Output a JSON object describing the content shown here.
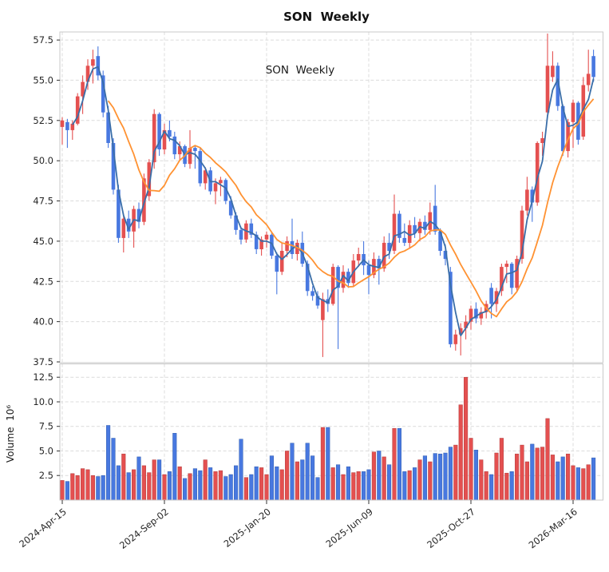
{
  "chart_data": {
    "type": "candlestick",
    "title": "SON  Weekly",
    "inset_label": "SON  Weekly",
    "interval": "weekly",
    "x_tick_labels": [
      "2024-Apr-15",
      "2024-Sep-02",
      "2025-Jan-20",
      "2025-Jun-09",
      "2025-Oct-27",
      "2026-Mar-16"
    ],
    "x_tick_indices": [
      0,
      20,
      40,
      60,
      80,
      100
    ],
    "price_axis": {
      "ticks": [
        "57.5",
        "55.0",
        "52.5",
        "50.0",
        "47.5",
        "45.0",
        "42.5",
        "40.0",
        "37.5"
      ],
      "range": [
        37.45,
        58.0
      ],
      "grid": true
    },
    "volume_axis": {
      "label": "Volume  10⁶",
      "ticks": [
        "12.5",
        "10.0",
        "7.5",
        "5.0",
        "2.5"
      ],
      "range": [
        0,
        13.86
      ],
      "unit_millions": true,
      "grid": true
    },
    "overlays": [
      {
        "name": "ma-short",
        "period": 3,
        "color": "#3a6ea8"
      },
      {
        "name": "ma-long",
        "period": 10,
        "color": "#ff9232"
      }
    ],
    "colors": {
      "up": "#e45050",
      "down": "#4878e0",
      "grid": "#dcdcdc",
      "spine": "#c9c9c9",
      "text": "#262626"
    },
    "columns": [
      "open",
      "high",
      "low",
      "close",
      "volume_millions"
    ],
    "candles": [
      [
        52.1,
        52.7,
        51.0,
        52.5,
        2.0
      ],
      [
        52.4,
        52.6,
        50.8,
        51.9,
        1.9
      ],
      [
        51.9,
        52.5,
        51.3,
        52.3,
        2.7
      ],
      [
        52.3,
        54.2,
        52.2,
        54.0,
        2.5
      ],
      [
        54.0,
        55.3,
        52.9,
        54.9,
        3.2
      ],
      [
        54.9,
        56.3,
        54.4,
        55.9,
        3.1
      ],
      [
        55.9,
        56.9,
        54.8,
        56.3,
        2.5
      ],
      [
        56.5,
        57.1,
        55.0,
        55.3,
        2.4
      ],
      [
        55.3,
        55.6,
        52.7,
        53.0,
        2.5
      ],
      [
        53.0,
        53.4,
        50.8,
        51.1,
        7.6
      ],
      [
        51.1,
        51.4,
        47.9,
        48.2,
        6.3
      ],
      [
        48.2,
        48.5,
        44.9,
        45.2,
        3.5
      ],
      [
        45.2,
        46.7,
        44.3,
        46.4,
        4.7
      ],
      [
        46.4,
        46.9,
        45.2,
        45.6,
        2.8
      ],
      [
        45.6,
        47.2,
        44.6,
        47.0,
        3.1
      ],
      [
        47.0,
        47.4,
        45.8,
        46.2,
        4.4
      ],
      [
        46.2,
        49.2,
        46.0,
        48.9,
        3.5
      ],
      [
        47.8,
        50.1,
        47.5,
        49.9,
        2.8
      ],
      [
        49.9,
        53.2,
        49.5,
        52.9,
        4.1
      ],
      [
        52.9,
        53.0,
        50.3,
        50.7,
        4.1
      ],
      [
        50.7,
        52.3,
        50.4,
        51.9,
        2.6
      ],
      [
        51.9,
        52.5,
        51.2,
        51.5,
        2.9
      ],
      [
        51.5,
        51.8,
        50.1,
        50.4,
        6.8
      ],
      [
        50.4,
        51.2,
        50.0,
        50.9,
        3.4
      ],
      [
        50.9,
        51.0,
        49.6,
        49.8,
        2.2
      ],
      [
        49.8,
        51.9,
        49.5,
        50.8,
        2.7
      ],
      [
        50.8,
        50.9,
        49.5,
        50.6,
        3.2
      ],
      [
        50.6,
        50.8,
        48.4,
        48.6,
        3.0
      ],
      [
        48.6,
        49.6,
        48.2,
        49.4,
        4.1
      ],
      [
        49.4,
        49.6,
        47.9,
        48.1,
        3.3
      ],
      [
        48.1,
        48.9,
        47.3,
        48.6,
        2.9
      ],
      [
        48.6,
        49.0,
        47.8,
        48.8,
        3.0
      ],
      [
        48.8,
        48.9,
        47.3,
        47.5,
        2.4
      ],
      [
        47.5,
        47.8,
        46.4,
        46.6,
        2.6
      ],
      [
        46.6,
        46.8,
        45.4,
        45.7,
        3.5
      ],
      [
        45.7,
        45.9,
        44.8,
        45.1,
        6.2
      ],
      [
        45.1,
        46.3,
        44.9,
        46.1,
        2.3
      ],
      [
        46.1,
        46.4,
        45.2,
        45.4,
        2.6
      ],
      [
        45.4,
        45.6,
        44.2,
        44.5,
        3.4
      ],
      [
        44.5,
        45.3,
        44.1,
        45.1,
        3.3
      ],
      [
        45.1,
        45.6,
        44.6,
        45.4,
        2.6
      ],
      [
        45.4,
        45.5,
        43.9,
        44.1,
        4.5
      ],
      [
        44.1,
        44.3,
        41.7,
        43.1,
        3.4
      ],
      [
        43.1,
        44.9,
        42.9,
        44.4,
        3.1
      ],
      [
        44.4,
        45.3,
        44.0,
        45.0,
        5.0
      ],
      [
        45.0,
        46.4,
        43.9,
        44.2,
        5.8
      ],
      [
        44.2,
        45.1,
        43.8,
        44.9,
        3.9
      ],
      [
        44.9,
        45.6,
        43.4,
        43.6,
        4.1
      ],
      [
        43.6,
        43.8,
        41.6,
        41.9,
        5.8
      ],
      [
        41.9,
        42.2,
        41.3,
        41.6,
        4.5
      ],
      [
        41.6,
        41.9,
        40.8,
        41.0,
        2.3
      ],
      [
        40.1,
        41.8,
        37.8,
        41.4,
        7.4
      ],
      [
        41.4,
        42.0,
        40.6,
        41.1,
        7.4
      ],
      [
        41.1,
        43.6,
        41.0,
        43.4,
        3.3
      ],
      [
        43.4,
        43.5,
        38.3,
        42.1,
        3.6
      ],
      [
        42.1,
        43.5,
        41.8,
        43.1,
        2.6
      ],
      [
        43.1,
        43.3,
        42.1,
        42.4,
        3.4
      ],
      [
        42.4,
        44.2,
        42.2,
        43.8,
        2.8
      ],
      [
        43.8,
        44.6,
        43.4,
        44.2,
        2.9
      ],
      [
        44.2,
        45.0,
        42.9,
        43.5,
        2.9
      ],
      [
        43.5,
        43.8,
        41.7,
        42.9,
        3.1
      ],
      [
        42.9,
        44.3,
        42.7,
        43.9,
        4.9
      ],
      [
        43.9,
        44.1,
        42.3,
        43.3,
        5.0
      ],
      [
        43.3,
        45.3,
        43.1,
        44.9,
        4.4
      ],
      [
        44.9,
        45.5,
        43.9,
        44.4,
        3.6
      ],
      [
        44.4,
        47.9,
        44.2,
        46.7,
        7.3
      ],
      [
        46.7,
        46.9,
        44.9,
        45.2,
        7.3
      ],
      [
        45.2,
        46.1,
        44.7,
        44.9,
        2.9
      ],
      [
        44.9,
        46.3,
        44.6,
        46.0,
        3.0
      ],
      [
        46.0,
        46.5,
        45.2,
        45.5,
        3.3
      ],
      [
        45.5,
        46.4,
        45.0,
        46.2,
        4.1
      ],
      [
        46.2,
        46.6,
        45.4,
        45.7,
        4.5
      ],
      [
        45.7,
        47.4,
        45.4,
        46.8,
        3.9
      ],
      [
        47.2,
        48.5,
        45.4,
        45.6,
        4.75
      ],
      [
        45.6,
        45.8,
        44.1,
        44.4,
        4.7
      ],
      [
        44.4,
        44.8,
        43.5,
        43.9,
        4.8
      ],
      [
        43.1,
        43.4,
        38.4,
        38.6,
        5.4
      ],
      [
        38.6,
        39.5,
        38.2,
        39.2,
        5.6
      ],
      [
        39.2,
        39.9,
        37.9,
        39.6,
        9.7
      ],
      [
        39.6,
        40.4,
        38.9,
        40.0,
        12.5
      ],
      [
        40.0,
        41.0,
        39.5,
        40.8,
        6.3
      ],
      [
        40.8,
        41.2,
        39.9,
        40.2,
        5.1
      ],
      [
        40.2,
        40.9,
        39.8,
        40.6,
        4.1
      ],
      [
        40.6,
        41.3,
        40.2,
        41.1,
        2.9
      ],
      [
        42.1,
        42.4,
        40.2,
        41.1,
        2.6
      ],
      [
        41.1,
        42.1,
        40.6,
        41.9,
        4.8
      ],
      [
        41.9,
        43.6,
        41.6,
        43.4,
        6.3
      ],
      [
        43.4,
        43.8,
        42.4,
        43.6,
        2.75
      ],
      [
        43.6,
        43.7,
        41.7,
        42.1,
        2.9
      ],
      [
        42.1,
        44.1,
        41.9,
        43.9,
        4.7
      ],
      [
        43.9,
        47.2,
        43.6,
        46.9,
        5.6
      ],
      [
        46.9,
        49.0,
        46.6,
        48.2,
        3.9
      ],
      [
        48.2,
        48.4,
        46.2,
        47.4,
        5.7
      ],
      [
        47.4,
        51.2,
        47.2,
        51.1,
        5.3
      ],
      [
        51.1,
        51.8,
        50.3,
        51.4,
        5.4
      ],
      [
        53.0,
        57.9,
        52.8,
        55.9,
        8.3
      ],
      [
        55.2,
        56.8,
        54.9,
        55.9,
        4.6
      ],
      [
        55.9,
        56.1,
        53.1,
        53.4,
        3.9
      ],
      [
        53.4,
        53.5,
        50.3,
        50.6,
        4.4
      ],
      [
        50.6,
        52.6,
        50.2,
        52.4,
        4.7
      ],
      [
        52.4,
        53.8,
        50.8,
        53.6,
        3.5
      ],
      [
        53.6,
        53.7,
        51.0,
        51.3,
        3.3
      ],
      [
        51.5,
        55.2,
        51.3,
        54.7,
        3.2
      ],
      [
        54.7,
        56.9,
        54.3,
        55.4,
        3.6
      ],
      [
        56.5,
        56.9,
        54.9,
        55.2,
        4.3
      ]
    ]
  }
}
